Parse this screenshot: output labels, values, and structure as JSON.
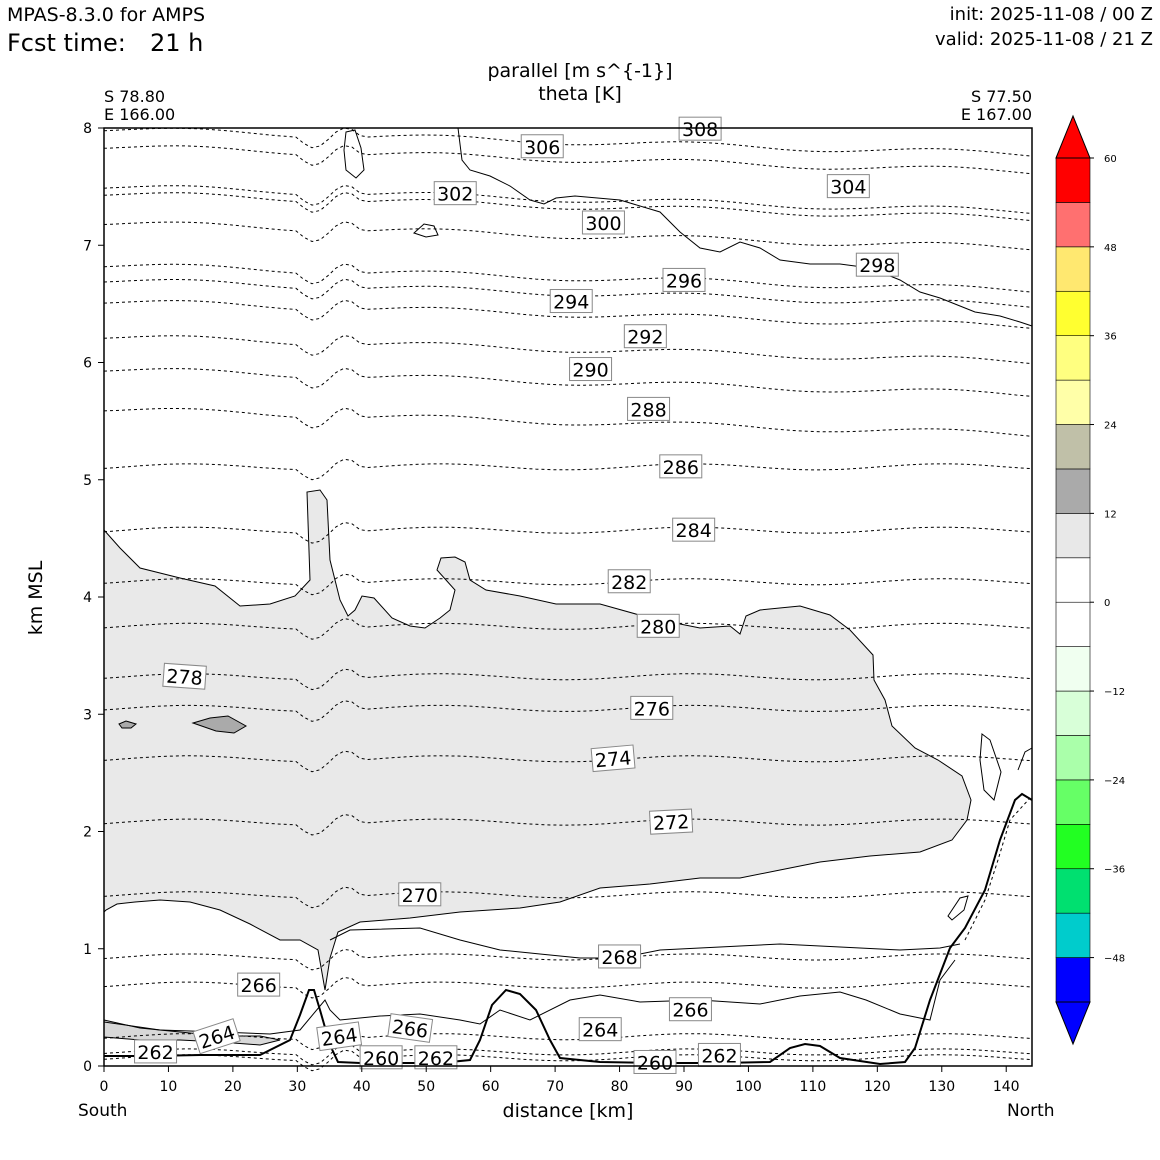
{
  "header": {
    "model": "MPAS-8.3.0 for AMPS",
    "fcst_label": "Fcst time:",
    "fcst_value": "21 h",
    "init": "init: 2025-11-08 / 00 Z",
    "valid": "valid: 2025-11-08 / 21 Z"
  },
  "chart_data": {
    "type": "contour",
    "title_line1": "parallel [m s^{-1}]",
    "title_line2": "theta [K]",
    "left_endpoint": {
      "lat": "S 78.80",
      "lon": "E 166.00",
      "label": "South"
    },
    "right_endpoint": {
      "lat": "S 77.50",
      "lon": "E 167.00",
      "label": "North"
    },
    "xlabel": "distance [km]",
    "ylabel": "km MSL",
    "xlim": [
      0,
      144
    ],
    "ylim": [
      0,
      8
    ],
    "x_ticks": [
      0,
      10,
      20,
      30,
      40,
      50,
      60,
      70,
      80,
      90,
      100,
      110,
      120,
      130,
      140
    ],
    "y_ticks": [
      0,
      1,
      2,
      3,
      4,
      5,
      6,
      7,
      8
    ],
    "colorbar": {
      "levels": [
        -54,
        -48,
        -42,
        -36,
        -30,
        -24,
        -18,
        -12,
        -6,
        0,
        6,
        12,
        18,
        24,
        30,
        36,
        42,
        48,
        54,
        60
      ],
      "tick_labels": [
        "−48",
        "−36",
        "−24",
        "−12",
        "0",
        "12",
        "24",
        "36",
        "48",
        "60"
      ],
      "tick_values": [
        -48,
        -36,
        -24,
        -12,
        0,
        12,
        24,
        36,
        48,
        60
      ],
      "colors": [
        "#0000ff",
        "#00cccc",
        "#00e070",
        "#22ff22",
        "#66ff66",
        "#aaffaa",
        "#d8ffd8",
        "#f0fff0",
        "#ffffff",
        "#ffffff",
        "#e8e8e8",
        "#aaaaaa",
        "#c0c0a8",
        "#ffffa8",
        "#ffff80",
        "#ffff30",
        "#ffe870",
        "#ff7070",
        "#ff0000"
      ],
      "under_color": "#0000ff",
      "over_color": "#ff0000"
    },
    "theta_contours": [
      {
        "label": "262",
        "x": 8,
        "y": 0.12,
        "rot": 0
      },
      {
        "label": "264",
        "x": 17.5,
        "y": 0.25,
        "rot": -18
      },
      {
        "label": "266",
        "x": 24,
        "y": 0.69,
        "rot": 0
      },
      {
        "label": "268",
        "x": 80,
        "y": 0.93,
        "rot": 0
      },
      {
        "label": "270",
        "x": 49,
        "y": 1.46,
        "rot": 0
      },
      {
        "label": "272",
        "x": 88,
        "y": 2.08,
        "rot": -3
      },
      {
        "label": "274",
        "x": 79,
        "y": 2.62,
        "rot": -5
      },
      {
        "label": "276",
        "x": 85,
        "y": 3.05,
        "rot": 0
      },
      {
        "label": "278",
        "x": 12.5,
        "y": 3.32,
        "rot": 4
      },
      {
        "label": "280",
        "x": 86,
        "y": 3.75,
        "rot": 0
      },
      {
        "label": "282",
        "x": 81.5,
        "y": 4.13,
        "rot": 0
      },
      {
        "label": "284",
        "x": 91.5,
        "y": 4.57,
        "rot": 0
      },
      {
        "label": "286",
        "x": 89.5,
        "y": 5.11,
        "rot": 0
      },
      {
        "label": "288",
        "x": 84.5,
        "y": 5.6,
        "rot": 0
      },
      {
        "label": "290",
        "x": 75.5,
        "y": 5.94,
        "rot": 0
      },
      {
        "label": "292",
        "x": 84,
        "y": 6.22,
        "rot": 0
      },
      {
        "label": "294",
        "x": 72.5,
        "y": 6.52,
        "rot": 0
      },
      {
        "label": "296",
        "x": 90,
        "y": 6.7,
        "rot": 0
      },
      {
        "label": "298",
        "x": 120,
        "y": 6.83,
        "rot": 0
      },
      {
        "label": "300",
        "x": 77.5,
        "y": 7.19,
        "rot": 0
      },
      {
        "label": "302",
        "x": 54.5,
        "y": 7.44,
        "rot": 0
      },
      {
        "label": "304",
        "x": 115.5,
        "y": 7.5,
        "rot": 0
      },
      {
        "label": "306",
        "x": 68,
        "y": 7.84,
        "rot": 0
      },
      {
        "label": "308",
        "x": 92.5,
        "y": 7.99,
        "rot": 0
      },
      {
        "label": "266",
        "x": 47.5,
        "y": 0.32,
        "rot": 8
      },
      {
        "label": "264",
        "x": 36.5,
        "y": 0.25,
        "rot": -8
      },
      {
        "label": "264",
        "x": 77,
        "y": 0.31,
        "rot": 0
      },
      {
        "label": "266",
        "x": 91,
        "y": 0.48,
        "rot": 0
      },
      {
        "label": "260",
        "x": 43,
        "y": 0.07,
        "rot": 0
      },
      {
        "label": "262",
        "x": 51.5,
        "y": 0.07,
        "rot": 0
      },
      {
        "label": "260",
        "x": 85.5,
        "y": 0.03,
        "rot": 0
      },
      {
        "label": "262",
        "x": 95.5,
        "y": 0.09,
        "rot": 0
      }
    ]
  }
}
